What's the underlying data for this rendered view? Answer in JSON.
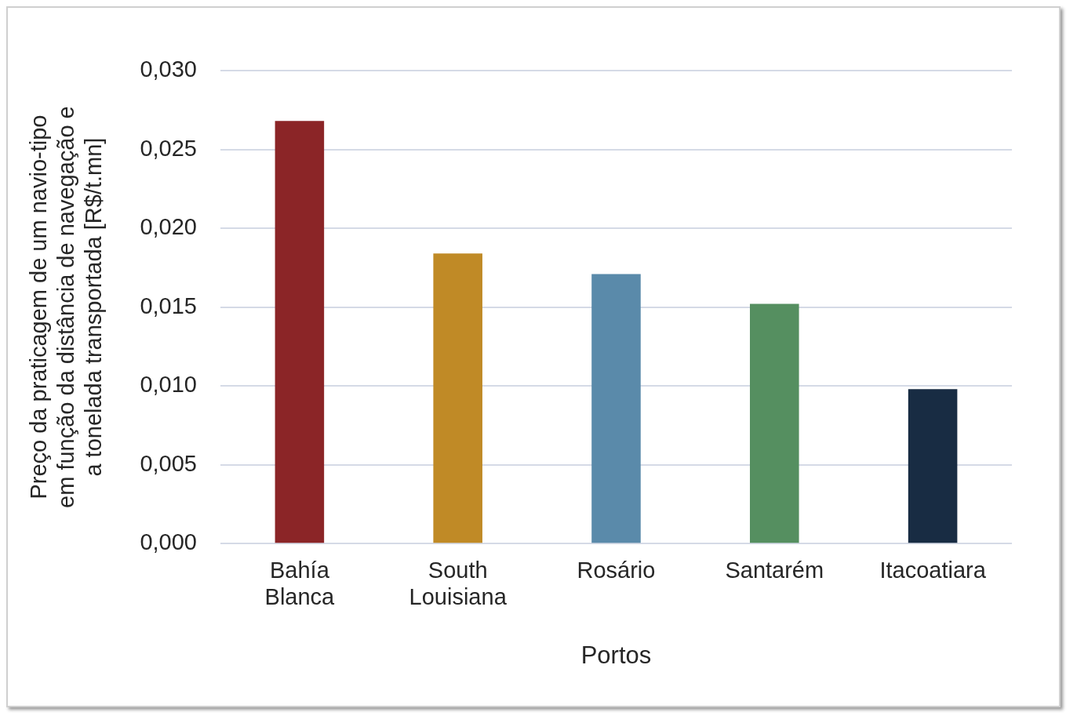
{
  "chart_data": {
    "type": "bar",
    "xlabel": "Portos",
    "ylabel": "Preço da praticagem de um navio-tipo em função da distância de navegação e a tonelada transportada [R$/t.mn]",
    "categories": [
      "Bahía Blanca",
      "South Louisiana",
      "Rosário",
      "Santarém",
      "Itacoatiara"
    ],
    "values": [
      0.0268,
      0.0184,
      0.0171,
      0.0152,
      0.0098
    ],
    "colors": [
      "#8b2527",
      "#c08a26",
      "#5a8aaa",
      "#558f60",
      "#182c43"
    ],
    "ylim": [
      0,
      0.03
    ],
    "yticks": [
      {
        "value": 0,
        "label": "0,000"
      },
      {
        "value": 0.005,
        "label": "0,005"
      },
      {
        "value": 0.01,
        "label": "0,010"
      },
      {
        "value": 0.015,
        "label": "0,015"
      },
      {
        "value": 0.02,
        "label": "0,020"
      },
      {
        "value": 0.025,
        "label": "0,025"
      },
      {
        "value": 0.03,
        "label": "0,030"
      }
    ],
    "grid": "y",
    "legend": false
  }
}
